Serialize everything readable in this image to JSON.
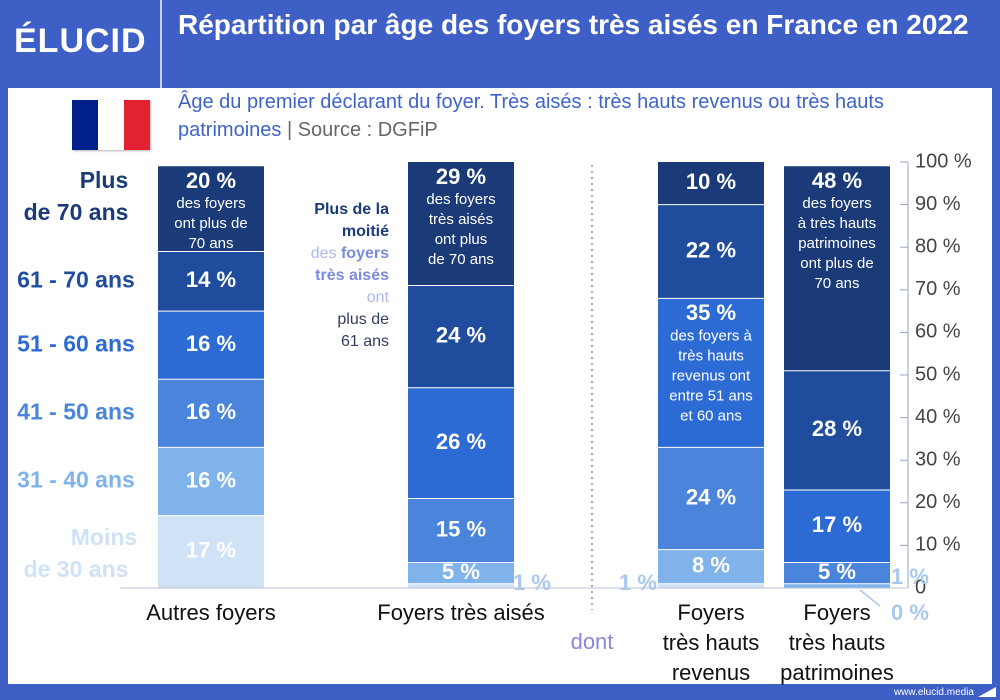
{
  "header": {
    "logo_text": "ÉLUCID",
    "title": "Répartition par âge des foyers très aisés en France en 2022",
    "subtitle": "Âge du premier déclarant du foyer. Très aisés : très hauts revenus ou très hauts patrimoines",
    "source": " | Source : DGFiP"
  },
  "footer": {
    "site": "www.elucid.media"
  },
  "colors": {
    "c1": "#cfe2f6",
    "c2": "#7fb3ea",
    "c3": "#4b84db",
    "c4": "#2d6bd4",
    "c5": "#204c9e",
    "c6": "#1a3a78",
    "flag_blue": "#001f8a",
    "flag_white": "#ffffff",
    "flag_red": "#e22230",
    "header": "#3e5fc6"
  },
  "chart_data": {
    "type": "bar",
    "stacked": true,
    "ylim": [
      0,
      100
    ],
    "yticks": [
      "0",
      "10 %",
      "20 %",
      "30 %",
      "40 %",
      "50 %",
      "60 %",
      "70 %",
      "80 %",
      "90 %",
      "100 %"
    ],
    "age_groups": [
      "Moins de 30 ans",
      "31 - 40 ans",
      "41  - 50 ans",
      "51 - 60 ans",
      "61 - 70 ans",
      "Plus de 70 ans"
    ],
    "age_group_lines": [
      [
        "Moins",
        "de 30 ans"
      ],
      [
        "31 - 40 ans"
      ],
      [
        "41  - 50 ans"
      ],
      [
        "51 - 60 ans"
      ],
      [
        "61 - 70 ans"
      ],
      [
        "Plus",
        "de 70 ans"
      ]
    ],
    "bars": [
      {
        "name": "Autres foyers",
        "label_lines": [
          "Autres foyers"
        ],
        "values": [
          17,
          16,
          16,
          16,
          14,
          20
        ],
        "labels": [
          "17 %",
          "16 %",
          "16 %",
          "16 %",
          "14 %",
          "20 %"
        ],
        "notes": {
          "5": [
            "des foyers",
            "ont plus de",
            "70 ans"
          ]
        }
      },
      {
        "name": "Foyers très aisés",
        "label_lines": [
          "Foyers très aisés"
        ],
        "values": [
          1,
          5,
          15,
          26,
          24,
          29
        ],
        "labels": [
          "1 %",
          "5 %",
          "15 %",
          "26 %",
          "24 %",
          "29 %"
        ],
        "notes": {
          "5": [
            "des foyers",
            "très aisés",
            "ont plus",
            "de 70 ans"
          ]
        }
      },
      {
        "name": "Foyers très hauts revenus",
        "label_lines": [
          "Foyers",
          "très hauts",
          "revenus"
        ],
        "values": [
          1,
          8,
          24,
          35,
          22,
          10
        ],
        "labels": [
          "1 %",
          "8 %",
          "24 %",
          "35 %",
          "22 %",
          "10 %"
        ],
        "notes": {
          "3": [
            "des foyers à",
            "très hauts",
            "revenus ont",
            "entre 51 ans",
            "et 60 ans"
          ]
        }
      },
      {
        "name": "Foyers très hauts patrimoines",
        "label_lines": [
          "Foyers",
          "très hauts",
          "patrimoines"
        ],
        "values": [
          0,
          1,
          5,
          17,
          28,
          48
        ],
        "labels": [
          "0 %",
          "1 %",
          "5 %",
          "17 %",
          "28 %",
          "48 %"
        ],
        "notes": {
          "5": [
            "des foyers",
            "à très hauts",
            "patrimoines",
            "ont plus de",
            "70 ans"
          ]
        }
      }
    ],
    "annotation": {
      "lines": [
        [
          {
            "t": "Plus de la",
            "c": "dark"
          }
        ],
        [
          {
            "t": "moitié",
            "c": "dark"
          }
        ],
        [
          {
            "t": "des ",
            "c": "light"
          },
          {
            "t": "foyers",
            "c": "mid"
          }
        ],
        [
          {
            "t": "très aisés",
            "c": "mid"
          }
        ],
        [
          {
            "t": "ont",
            "c": "light"
          }
        ],
        [
          {
            "t": "plus de",
            "c": "dark2"
          }
        ],
        [
          {
            "t": "61 ans",
            "c": "dark2"
          }
        ]
      ]
    },
    "dont_label": "dont"
  }
}
